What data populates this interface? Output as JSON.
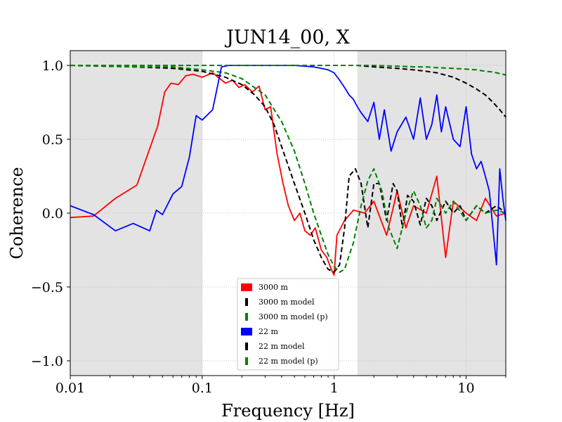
{
  "chart_data": {
    "type": "line",
    "title": "JUN14_00, X",
    "xlabel": "Frequency [Hz]",
    "ylabel": "Coherence",
    "x_scale": "log",
    "xlim": [
      0.01,
      20
    ],
    "ylim": [
      -1.1,
      1.1
    ],
    "x_ticks": [
      0.01,
      0.1,
      1,
      10
    ],
    "x_tick_labels": [
      "0.01",
      "0.1",
      "1",
      "10"
    ],
    "y_ticks": [
      -1.0,
      -0.5,
      0.0,
      0.5,
      1.0
    ],
    "y_tick_labels": [
      "−1.0",
      "−0.5",
      "0.0",
      "0.5",
      "1.0"
    ],
    "grid": true,
    "legend_position": "lower-center",
    "shaded_x_ranges": [
      [
        0.01,
        0.1
      ],
      [
        1.5,
        20
      ]
    ],
    "series": [
      {
        "name": "3000 m",
        "color": "#ff0000",
        "style": "solid",
        "x": [
          0.01,
          0.015,
          0.022,
          0.032,
          0.046,
          0.052,
          0.058,
          0.066,
          0.075,
          0.085,
          0.1,
          0.12,
          0.15,
          0.17,
          0.19,
          0.21,
          0.24,
          0.27,
          0.3,
          0.33,
          0.37,
          0.41,
          0.45,
          0.5,
          0.55,
          0.6,
          0.66,
          0.72,
          0.8,
          0.88,
          0.95,
          1.0,
          1.05,
          1.2,
          1.4,
          1.7,
          2.0,
          2.5,
          3.0,
          3.5,
          4.0,
          5.0,
          6.0,
          7.0,
          8.0,
          10.0,
          12.0,
          14.0,
          17.0,
          20.0
        ],
        "y": [
          -0.03,
          -0.02,
          0.1,
          0.19,
          0.59,
          0.82,
          0.88,
          0.87,
          0.93,
          0.94,
          0.92,
          0.95,
          0.88,
          0.9,
          0.85,
          0.87,
          0.82,
          0.86,
          0.7,
          0.72,
          0.4,
          0.2,
          0.05,
          -0.05,
          0.0,
          -0.12,
          -0.15,
          -0.1,
          -0.25,
          -0.3,
          -0.38,
          -0.42,
          -0.15,
          -0.05,
          0.02,
          0.0,
          0.08,
          -0.15,
          0.15,
          -0.1,
          0.05,
          0.0,
          0.25,
          -0.3,
          0.08,
          0.0,
          -0.05,
          0.1,
          -0.02,
          0.0
        ]
      },
      {
        "name": "3000 m model",
        "color": "#000000",
        "style": "dashed",
        "x": [
          0.01,
          0.03,
          0.06,
          0.1,
          0.15,
          0.2,
          0.25,
          0.3,
          0.35,
          0.4,
          0.5,
          0.6,
          0.7,
          0.8,
          0.9,
          1.0,
          1.1,
          1.2,
          1.3,
          1.45,
          1.6,
          1.8,
          2.0,
          2.2,
          2.5,
          2.8,
          3.0,
          3.3,
          3.6,
          4.0,
          4.5,
          5.0,
          5.5,
          6.0,
          7.0,
          8.0,
          9.0,
          10.0,
          12.0,
          14.0,
          17.0,
          20.0
        ],
        "y": [
          1.0,
          0.99,
          0.98,
          0.96,
          0.92,
          0.87,
          0.8,
          0.72,
          0.6,
          0.45,
          0.2,
          0.0,
          -0.18,
          -0.3,
          -0.38,
          -0.4,
          -0.35,
          -0.1,
          0.25,
          0.3,
          0.2,
          -0.1,
          0.2,
          0.2,
          -0.05,
          0.2,
          0.15,
          -0.1,
          0.12,
          0.08,
          -0.08,
          0.1,
          0.05,
          -0.05,
          0.08,
          0.0,
          0.05,
          -0.05,
          0.05,
          0.0,
          0.05,
          0.0
        ]
      },
      {
        "name": "3000 m model (p)",
        "color": "#008000",
        "style": "dashed",
        "x": [
          0.01,
          0.03,
          0.06,
          0.1,
          0.15,
          0.2,
          0.3,
          0.4,
          0.5,
          0.6,
          0.7,
          0.8,
          0.9,
          1.0,
          1.1,
          1.2,
          1.4,
          1.6,
          1.8,
          2.0,
          2.3,
          2.6,
          3.0,
          3.5,
          4.0,
          4.5,
          5.0,
          5.5,
          6.0,
          7.0,
          8.0,
          10.0,
          12.0,
          14.0,
          17.0,
          20.0
        ],
        "y": [
          1.0,
          0.99,
          0.99,
          0.97,
          0.95,
          0.91,
          0.8,
          0.62,
          0.42,
          0.2,
          0.0,
          -0.15,
          -0.28,
          -0.36,
          -0.4,
          -0.38,
          -0.2,
          0.05,
          0.22,
          0.3,
          0.15,
          -0.1,
          -0.24,
          0.0,
          0.15,
          0.05,
          -0.1,
          -0.05,
          0.1,
          0.0,
          0.08,
          -0.05,
          0.05,
          0.0,
          0.02,
          0.0
        ]
      },
      {
        "name": "22 m",
        "color": "#0000ff",
        "style": "solid",
        "x": [
          0.01,
          0.015,
          0.022,
          0.03,
          0.04,
          0.045,
          0.05,
          0.06,
          0.07,
          0.08,
          0.09,
          0.1,
          0.12,
          0.14,
          0.16,
          0.2,
          0.3,
          0.5,
          0.7,
          0.8,
          0.9,
          1.0,
          1.1,
          1.2,
          1.3,
          1.4,
          1.5,
          1.6,
          1.8,
          2.0,
          2.2,
          2.4,
          2.7,
          3.0,
          3.5,
          4.0,
          4.5,
          5.0,
          5.5,
          6.0,
          6.5,
          7.0,
          8.0,
          9.0,
          10.0,
          11.0,
          12.0,
          13.0,
          14.0,
          15.0,
          17.0,
          18.0,
          19.0,
          20.0
        ],
        "y": [
          0.05,
          -0.01,
          -0.12,
          -0.07,
          -0.12,
          0.02,
          -0.01,
          0.13,
          0.18,
          0.38,
          0.66,
          0.63,
          0.7,
          0.99,
          1.0,
          1.0,
          1.0,
          1.0,
          0.99,
          0.98,
          0.97,
          0.95,
          0.9,
          0.85,
          0.8,
          0.77,
          0.72,
          0.68,
          0.62,
          0.75,
          0.5,
          0.7,
          0.42,
          0.55,
          0.65,
          0.5,
          0.78,
          0.5,
          0.6,
          0.8,
          0.55,
          0.72,
          0.5,
          0.45,
          0.72,
          0.4,
          0.3,
          0.35,
          0.25,
          0.15,
          -0.35,
          0.3,
          0.1,
          -0.05
        ]
      },
      {
        "name": "22 m model",
        "color": "#000000",
        "style": "dashed",
        "x": [
          0.01,
          0.1,
          0.5,
          1.0,
          1.5,
          2.0,
          3.0,
          4.0,
          5.0,
          6.0,
          8.0,
          10.0,
          12.0,
          14.0,
          16.0,
          18.0,
          20.0
        ],
        "y": [
          1.0,
          1.0,
          1.0,
          1.0,
          1.0,
          0.99,
          0.98,
          0.97,
          0.96,
          0.95,
          0.92,
          0.88,
          0.84,
          0.8,
          0.75,
          0.7,
          0.65
        ]
      },
      {
        "name": "22 m model (p)",
        "color": "#008000",
        "style": "dashed",
        "x": [
          0.01,
          0.1,
          0.5,
          1.0,
          1.5,
          2.0,
          3.0,
          4.0,
          5.0,
          6.0,
          8.0,
          10.0,
          12.0,
          14.0,
          16.0,
          18.0,
          20.0
        ],
        "y": [
          1.0,
          1.0,
          1.0,
          1.0,
          1.0,
          1.0,
          0.995,
          0.99,
          0.99,
          0.985,
          0.98,
          0.975,
          0.97,
          0.96,
          0.955,
          0.945,
          0.935
        ]
      }
    ]
  }
}
